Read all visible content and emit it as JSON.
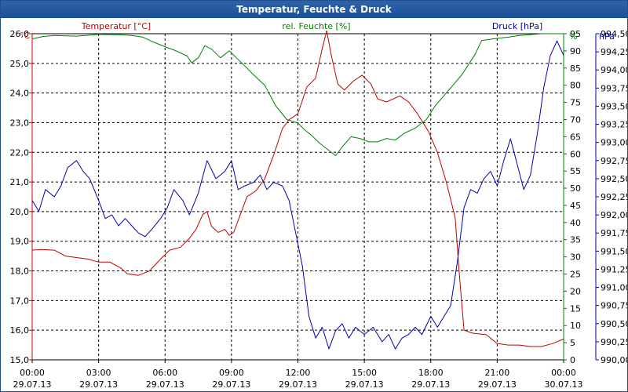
{
  "chart_data": {
    "type": "line",
    "title": "Temperatur, Feuchte & Druck",
    "x_ticks": [
      {
        "time": "00:00",
        "date": "29.07.13"
      },
      {
        "time": "03:00",
        "date": "29.07.13"
      },
      {
        "time": "06:00",
        "date": "29.07.13"
      },
      {
        "time": "09:00",
        "date": "29.07.13"
      },
      {
        "time": "12:00",
        "date": "29.07.13"
      },
      {
        "time": "15:00",
        "date": "29.07.13"
      },
      {
        "time": "18:00",
        "date": "29.07.13"
      },
      {
        "time": "21:00",
        "date": "29.07.13"
      },
      {
        "time": "00:00",
        "date": "30.07.13"
      }
    ],
    "x_range_hours": [
      0,
      24
    ],
    "axes": {
      "temperature": {
        "label": "Temperatur [°C]",
        "unit": "°C",
        "min": 15,
        "max": 26,
        "step": 1,
        "decimals": 1,
        "color": "#c00000"
      },
      "humidity": {
        "label": "rel. Feuchte [%]",
        "unit": "%",
        "min": 0,
        "max": 95,
        "step": 5,
        "decimals": 0,
        "color": "#008000"
      },
      "pressure": {
        "label": "Druck [hPa]",
        "unit": "hPa",
        "min": 990.0,
        "max": 994.5,
        "step": 0.25,
        "decimals": 2,
        "color": "#0000b0"
      }
    },
    "series": [
      {
        "name": "Temperatur [°C]",
        "axis": "temperature",
        "color": "#c00000",
        "points": [
          [
            0,
            18.7
          ],
          [
            0.4,
            18.72
          ],
          [
            1,
            18.7
          ],
          [
            1.5,
            18.5
          ],
          [
            2,
            18.45
          ],
          [
            2.5,
            18.4
          ],
          [
            3,
            18.3
          ],
          [
            3.5,
            18.3
          ],
          [
            4,
            18.1
          ],
          [
            4.3,
            17.9
          ],
          [
            4.8,
            17.85
          ],
          [
            5.3,
            18.0
          ],
          [
            5.8,
            18.4
          ],
          [
            6.2,
            18.7
          ],
          [
            6.7,
            18.8
          ],
          [
            7.1,
            19.1
          ],
          [
            7.4,
            19.4
          ],
          [
            7.7,
            19.9
          ],
          [
            7.9,
            20.0
          ],
          [
            8.1,
            19.5
          ],
          [
            8.4,
            19.3
          ],
          [
            8.7,
            19.4
          ],
          [
            8.9,
            19.2
          ],
          [
            9.1,
            19.3
          ],
          [
            9.4,
            19.9
          ],
          [
            9.7,
            20.5
          ],
          [
            10.1,
            20.7
          ],
          [
            10.5,
            21.1
          ],
          [
            10.9,
            21.9
          ],
          [
            11.3,
            22.8
          ],
          [
            11.6,
            23.1
          ],
          [
            12,
            23.3
          ],
          [
            12.4,
            24.2
          ],
          [
            12.8,
            24.5
          ],
          [
            13.1,
            25.5
          ],
          [
            13.3,
            26.1
          ],
          [
            13.5,
            25.3
          ],
          [
            13.8,
            24.3
          ],
          [
            14.1,
            24.1
          ],
          [
            14.5,
            24.4
          ],
          [
            14.9,
            24.6
          ],
          [
            15.3,
            24.3
          ],
          [
            15.6,
            23.8
          ],
          [
            16,
            23.7
          ],
          [
            16.6,
            23.9
          ],
          [
            17,
            23.7
          ],
          [
            17.4,
            23.3
          ],
          [
            17.9,
            22.7
          ],
          [
            18.3,
            22.0
          ],
          [
            18.7,
            21.0
          ],
          [
            19.1,
            19.8
          ],
          [
            19.3,
            17.8
          ],
          [
            19.5,
            16.0
          ],
          [
            19.9,
            15.9
          ],
          [
            20.5,
            15.85
          ],
          [
            21,
            15.55
          ],
          [
            21.5,
            15.5
          ],
          [
            22,
            15.5
          ],
          [
            22.5,
            15.45
          ],
          [
            23,
            15.45
          ],
          [
            23.5,
            15.55
          ],
          [
            24,
            15.7
          ]
        ]
      },
      {
        "name": "rel. Feuchte [%]",
        "axis": "humidity",
        "color": "#008000",
        "points": [
          [
            0,
            93.5
          ],
          [
            0.5,
            94.2
          ],
          [
            1,
            94.5
          ],
          [
            2,
            94.3
          ],
          [
            3,
            94.8
          ],
          [
            4,
            94.7
          ],
          [
            4.5,
            94.5
          ],
          [
            5,
            94.0
          ],
          [
            5.5,
            92.5
          ],
          [
            6,
            91.2
          ],
          [
            6.5,
            90.0
          ],
          [
            7,
            88.5
          ],
          [
            7.2,
            86.5
          ],
          [
            7.5,
            88.0
          ],
          [
            7.8,
            91.5
          ],
          [
            8.1,
            90.5
          ],
          [
            8.5,
            88.0
          ],
          [
            8.9,
            90.0
          ],
          [
            9.3,
            87.5
          ],
          [
            9.7,
            85.0
          ],
          [
            10,
            83.0
          ],
          [
            10.5,
            80.0
          ],
          [
            11,
            74.0
          ],
          [
            11.5,
            70.0
          ],
          [
            12,
            69.0
          ],
          [
            12.3,
            67.0
          ],
          [
            12.6,
            65.5
          ],
          [
            13,
            63.0
          ],
          [
            13.4,
            61.0
          ],
          [
            13.7,
            59.5
          ],
          [
            14,
            62.0
          ],
          [
            14.4,
            65.0
          ],
          [
            14.8,
            64.5
          ],
          [
            15.2,
            63.5
          ],
          [
            15.6,
            63.5
          ],
          [
            16,
            64.5
          ],
          [
            16.4,
            64.0
          ],
          [
            16.8,
            66.0
          ],
          [
            17.3,
            67.5
          ],
          [
            17.8,
            70.0
          ],
          [
            18.2,
            74.0
          ],
          [
            18.6,
            77.0
          ],
          [
            19,
            80.0
          ],
          [
            19.4,
            83.0
          ],
          [
            19.6,
            85.0
          ],
          [
            20,
            89.0
          ],
          [
            20.3,
            93.0
          ],
          [
            20.8,
            93.5
          ],
          [
            21.5,
            94.0
          ],
          [
            22,
            94.5
          ],
          [
            23,
            95.0
          ],
          [
            24,
            95.0
          ]
        ]
      },
      {
        "name": "Druck [hPa]",
        "axis": "pressure",
        "color": "#0000b0",
        "points": [
          [
            0,
            992.2
          ],
          [
            0.3,
            992.05
          ],
          [
            0.6,
            992.35
          ],
          [
            1,
            992.25
          ],
          [
            1.3,
            992.4
          ],
          [
            1.6,
            992.65
          ],
          [
            2,
            992.75
          ],
          [
            2.3,
            992.6
          ],
          [
            2.6,
            992.5
          ],
          [
            3,
            992.2
          ],
          [
            3.3,
            991.95
          ],
          [
            3.6,
            992.0
          ],
          [
            3.9,
            991.85
          ],
          [
            4.2,
            991.95
          ],
          [
            4.5,
            991.85
          ],
          [
            4.8,
            991.75
          ],
          [
            5.1,
            991.7
          ],
          [
            5.4,
            991.8
          ],
          [
            5.8,
            991.95
          ],
          [
            6.1,
            992.1
          ],
          [
            6.4,
            992.35
          ],
          [
            6.8,
            992.2
          ],
          [
            7.1,
            992.0
          ],
          [
            7.5,
            992.3
          ],
          [
            7.9,
            992.75
          ],
          [
            8.3,
            992.5
          ],
          [
            8.7,
            992.6
          ],
          [
            9,
            992.75
          ],
          [
            9.3,
            992.35
          ],
          [
            9.6,
            992.4
          ],
          [
            10,
            992.45
          ],
          [
            10.3,
            992.55
          ],
          [
            10.6,
            992.35
          ],
          [
            10.9,
            992.45
          ],
          [
            11.3,
            992.4
          ],
          [
            11.6,
            992.2
          ],
          [
            11.9,
            991.75
          ],
          [
            12.2,
            991.3
          ],
          [
            12.5,
            990.6
          ],
          [
            12.8,
            990.3
          ],
          [
            13.1,
            990.45
          ],
          [
            13.4,
            990.15
          ],
          [
            13.7,
            990.4
          ],
          [
            14,
            990.5
          ],
          [
            14.3,
            990.3
          ],
          [
            14.6,
            990.45
          ],
          [
            15,
            990.35
          ],
          [
            15.4,
            990.45
          ],
          [
            15.8,
            990.25
          ],
          [
            16.1,
            990.35
          ],
          [
            16.4,
            990.15
          ],
          [
            16.7,
            990.3
          ],
          [
            17,
            990.35
          ],
          [
            17.3,
            990.45
          ],
          [
            17.6,
            990.35
          ],
          [
            18,
            990.6
          ],
          [
            18.3,
            990.45
          ],
          [
            18.6,
            990.6
          ],
          [
            18.9,
            990.75
          ],
          [
            19.2,
            991.35
          ],
          [
            19.5,
            992.1
          ],
          [
            19.8,
            992.35
          ],
          [
            20.1,
            992.3
          ],
          [
            20.4,
            992.5
          ],
          [
            20.7,
            992.6
          ],
          [
            21,
            992.4
          ],
          [
            21.3,
            992.75
          ],
          [
            21.6,
            993.05
          ],
          [
            21.9,
            992.7
          ],
          [
            22.2,
            992.35
          ],
          [
            22.5,
            992.55
          ],
          [
            22.8,
            993.1
          ],
          [
            23.1,
            993.75
          ],
          [
            23.4,
            994.2
          ],
          [
            23.7,
            994.4
          ],
          [
            24,
            994.2
          ]
        ]
      }
    ]
  }
}
